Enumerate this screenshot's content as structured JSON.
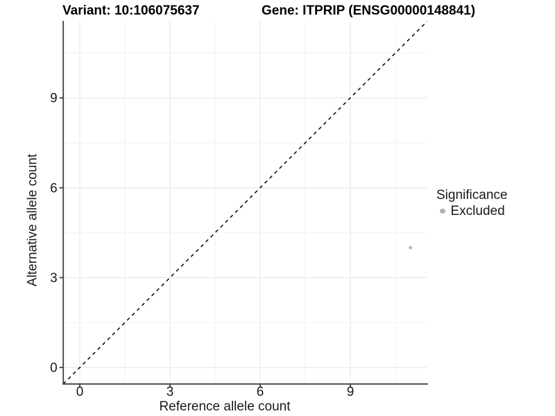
{
  "chart_data": {
    "type": "scatter",
    "title_left": "Variant: 10:106075637",
    "title_right": "Gene: ITPRIP (ENSG00000148841)",
    "xlabel": "Reference allele count",
    "ylabel": "Alternative allele count",
    "xlim": [
      -0.55,
      11.55
    ],
    "ylim": [
      -0.55,
      11.55
    ],
    "x_major_ticks": [
      0,
      3,
      6,
      9
    ],
    "y_major_ticks": [
      0,
      3,
      6,
      9
    ],
    "x_minor_ticks": [
      1.5,
      4.5,
      7.5,
      10.5
    ],
    "y_minor_ticks": [
      1.5,
      4.5,
      7.5,
      10.5
    ],
    "grid": "major+minor",
    "series": [
      {
        "name": "Excluded",
        "color": "#b6b6b6",
        "point_radius": 2.5,
        "points": [
          {
            "x": 11,
            "y": 4
          }
        ]
      }
    ],
    "identity_line": {
      "label": "y = x",
      "style": "dashed",
      "color": "#000000",
      "x0": -0.55,
      "y0": -0.55,
      "x1": 11.55,
      "y1": 11.55
    },
    "legend": {
      "title": "Significance",
      "position": "right",
      "items": [
        {
          "label": "Excluded",
          "color": "#b0b0b0"
        }
      ]
    },
    "colors": {
      "background": "#ffffff",
      "axis_line": "#404040",
      "tick_mark": "#404040",
      "tick_label": "#1a1a1a",
      "grid_major": "#e7e7e7",
      "grid_minor": "#f2f2f2"
    }
  }
}
